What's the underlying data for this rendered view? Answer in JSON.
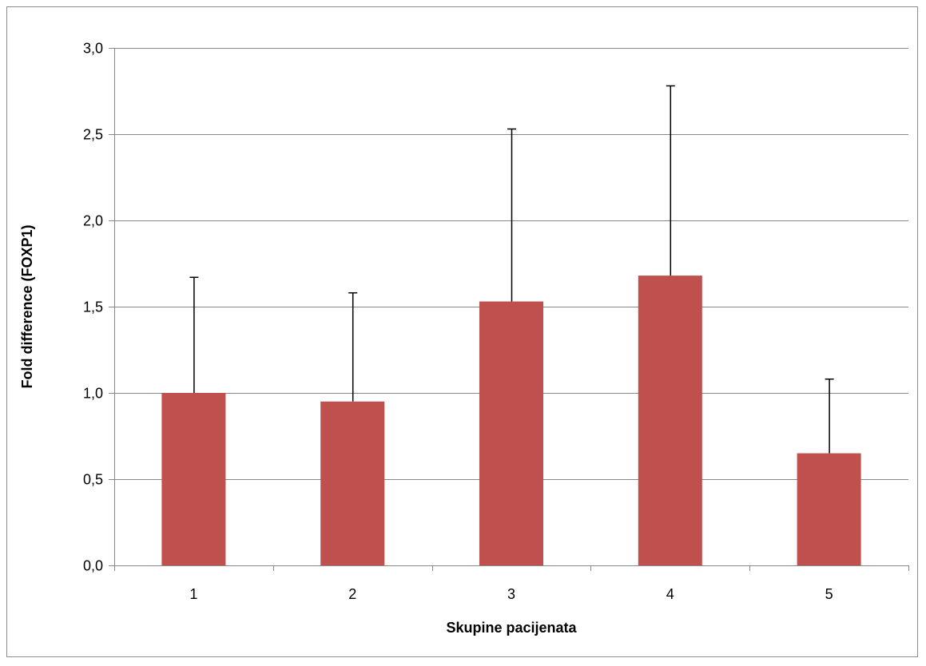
{
  "chart_data": {
    "type": "bar",
    "categories": [
      "1",
      "2",
      "3",
      "4",
      "5"
    ],
    "values": [
      1.0,
      0.95,
      1.53,
      1.68,
      0.65
    ],
    "error_upper": [
      1.67,
      1.58,
      2.53,
      2.78,
      1.08
    ],
    "title": "",
    "xlabel": "Skupine pacijenata",
    "ylabel": "Fold difference (FOXP1)",
    "ylim": [
      0,
      3.0
    ],
    "yticks": [
      0,
      0.5,
      1.0,
      1.5,
      2.0,
      2.5,
      3.0
    ],
    "ytick_labels": [
      "0,0",
      "0,5",
      "1,0",
      "1,5",
      "2,0",
      "2,5",
      "3,0"
    ],
    "grid": true,
    "legend": "none",
    "colors": {
      "bar": "#c0504d",
      "grid": "#878787",
      "axis": "#878787",
      "error_bar": "#000000"
    }
  }
}
